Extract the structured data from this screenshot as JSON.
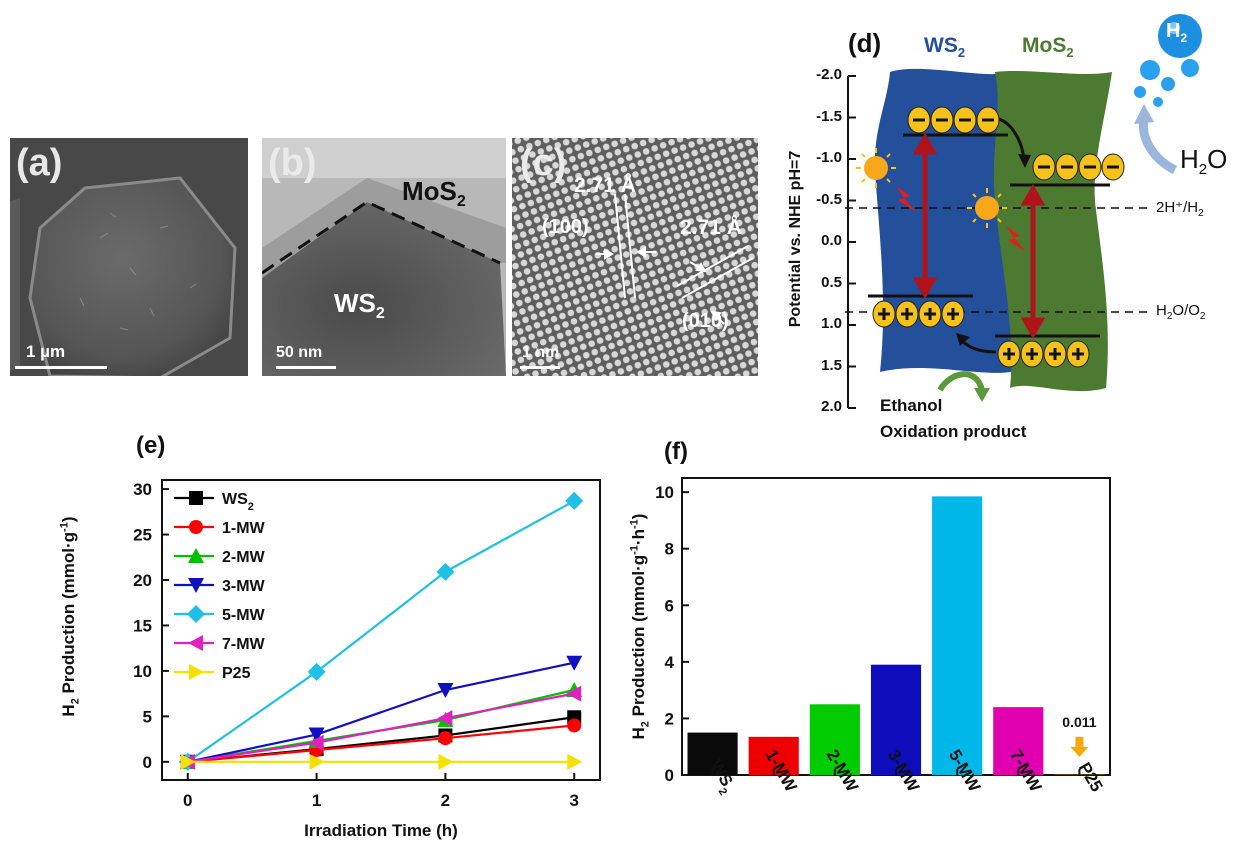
{
  "panel_a": {
    "label": "(a)",
    "scale_bar": "1 µm"
  },
  "panel_b": {
    "label": "(b)",
    "mos2": "MoS",
    "mos2_sub": "2",
    "ws2": "WS",
    "ws2_sub": "2",
    "scale_bar": "50 nm"
  },
  "panel_c": {
    "label": "(c)",
    "d1": "2.71 Å",
    "plane1": "(100)",
    "d2": "2.71 Å",
    "plane2": "(010)",
    "scale_bar": "1 nm"
  },
  "panel_d": {
    "label": "(d)",
    "ws2": "WS",
    "ws2_sub": "2",
    "mos2": "MoS",
    "mos2_sub": "2",
    "h2": "H",
    "h2_sub": "2",
    "h2o": "H",
    "h2o_sub": "2",
    "h2o_tail": "O",
    "axis_label": "Potential vs. NHE pH=7",
    "ticks": [
      "-2.0",
      "-1.5",
      "-1.0",
      "-0.5",
      "0.0",
      "0.5",
      "1.0",
      "1.5",
      "2.0"
    ],
    "ref1": "2H⁺/H",
    "ref1_sub": "2",
    "ref2": "H",
    "ref2_sub": "2",
    "ref2_tail": "O/O",
    "ref2_sub2": "2",
    "ethanol": "Ethanol",
    "oxidation": "Oxidation product",
    "colors": {
      "ws2": "#234f9b",
      "mos2": "#4d7a31",
      "carrier": "#f5c21b",
      "arrow": "#b0141a"
    }
  },
  "chart_data": [
    {
      "type": "line",
      "panel_label": "(e)",
      "xlabel": "Irradiation Time (h)",
      "ylabel": "H₂ Production (mmol·g⁻¹)",
      "ylabel_parts": {
        "a": "H",
        "a_sub": "2",
        "b": " Production (mmol·g",
        "b_sup": "-1",
        "c": ")"
      },
      "x": [
        0,
        1,
        2,
        3
      ],
      "xlim": [
        -0.2,
        3.2
      ],
      "ylim": [
        -2,
        31
      ],
      "yticks": [
        0,
        5,
        10,
        15,
        20,
        25,
        30
      ],
      "xticks": [
        0,
        1,
        2,
        3
      ],
      "legend_position": "top-left",
      "series": [
        {
          "name": "WS",
          "name_sub": "2",
          "values": [
            0,
            1.4,
            2.9,
            4.9
          ],
          "color": "#000000",
          "marker": "square"
        },
        {
          "name": "1-MW",
          "values": [
            0,
            1.3,
            2.6,
            4.0
          ],
          "color": "#ff0000",
          "marker": "circle"
        },
        {
          "name": "2-MW",
          "values": [
            0,
            2.3,
            4.6,
            7.9
          ],
          "color": "#00c000",
          "marker": "triangle-up"
        },
        {
          "name": "3-MW",
          "values": [
            0,
            3.0,
            7.9,
            10.9
          ],
          "color": "#1010c0",
          "marker": "triangle-down"
        },
        {
          "name": "5-MW",
          "values": [
            0,
            9.9,
            20.9,
            28.7
          ],
          "color": "#1ec0e6",
          "marker": "diamond"
        },
        {
          "name": "7-MW",
          "values": [
            0,
            2.1,
            4.8,
            7.5
          ],
          "color": "#e020c0",
          "marker": "triangle-left"
        },
        {
          "name": "P25",
          "values": [
            0,
            0,
            0,
            0
          ],
          "color": "#f5e100",
          "marker": "triangle-right"
        }
      ]
    },
    {
      "type": "bar",
      "panel_label": "(f)",
      "ylabel": "H₂ Production (mmol·g⁻¹·h⁻¹)",
      "ylabel_parts": {
        "a": "H",
        "a_sub": "2",
        "b": " Production (mmol·g",
        "b_sup": "-1",
        "c": "·h",
        "c_sup": "-1",
        "d": ")"
      },
      "categories": [
        "WS₂",
        "1-MW",
        "2-MW",
        "3-MW",
        "5-MW",
        "7-MW",
        "P25"
      ],
      "category_parts": [
        {
          "t": "WS",
          "sub": "2"
        },
        {
          "t": "1-MW"
        },
        {
          "t": "2-MW"
        },
        {
          "t": "3-MW"
        },
        {
          "t": "5-MW"
        },
        {
          "t": "7-MW"
        },
        {
          "t": "P25"
        }
      ],
      "values": [
        1.5,
        1.35,
        2.5,
        3.9,
        9.85,
        2.4,
        0.011
      ],
      "colors": [
        "#0a0a0a",
        "#ee0000",
        "#00cc00",
        "#0d0dbb",
        "#00b8e8",
        "#e000b0",
        "#f5a800"
      ],
      "annotation": "0.011",
      "ylim": [
        0,
        10.5
      ],
      "yticks": [
        0,
        2,
        4,
        6,
        8,
        10
      ]
    }
  ]
}
